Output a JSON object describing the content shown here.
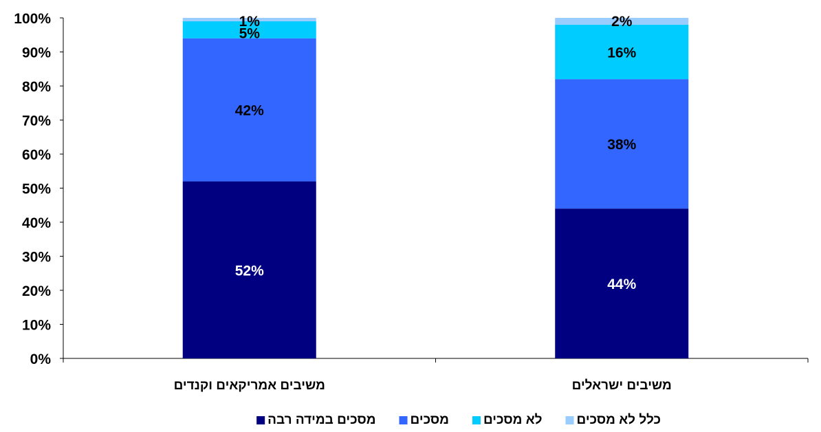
{
  "chart_data": {
    "type": "bar",
    "stacked": true,
    "title": "",
    "xlabel": "",
    "ylabel": "",
    "ylim": [
      0,
      100
    ],
    "y_ticks": [
      "0%",
      "10%",
      "20%",
      "30%",
      "40%",
      "50%",
      "60%",
      "70%",
      "80%",
      "90%",
      "100%"
    ],
    "categories": [
      "משיבים אמריקאים וקנדים",
      "משיבים ישראלים"
    ],
    "series": [
      {
        "name": "מסכים במידה רבה",
        "color": "#000080",
        "label_color": "#ffffff",
        "values": [
          52,
          44
        ],
        "labels": [
          "52%",
          "44%"
        ]
      },
      {
        "name": "מסכים",
        "color": "#3366ff",
        "label_color": "#000000",
        "values": [
          42,
          38
        ],
        "labels": [
          "42%",
          "38%"
        ]
      },
      {
        "name": "לא מסכים",
        "color": "#00ccff",
        "label_color": "#000000",
        "values": [
          5,
          16
        ],
        "labels": [
          "5%",
          "16%"
        ]
      },
      {
        "name": "כלל לא מסכים",
        "color": "#99ccff",
        "label_color": "#000000",
        "values": [
          1,
          2
        ],
        "labels": [
          "1%",
          "2%"
        ]
      }
    ],
    "grid": false,
    "legend_position": "bottom"
  }
}
